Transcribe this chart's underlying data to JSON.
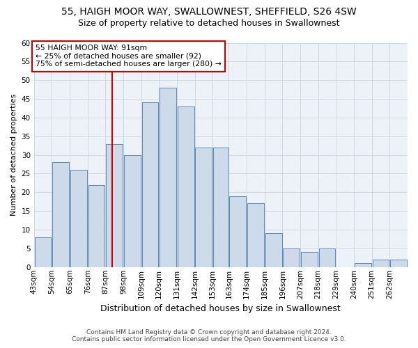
{
  "title_line1": "55, HAIGH MOOR WAY, SWALLOWNEST, SHEFFIELD, S26 4SW",
  "title_line2": "Size of property relative to detached houses in Swallownest",
  "xlabel": "Distribution of detached houses by size in Swallownest",
  "ylabel": "Number of detached properties",
  "footnote1": "Contains HM Land Registry data © Crown copyright and database right 2024.",
  "footnote2": "Contains public sector information licensed under the Open Government Licence v3.0.",
  "bar_labels": [
    "43sqm",
    "54sqm",
    "65sqm",
    "76sqm",
    "87sqm",
    "98sqm",
    "109sqm",
    "120sqm",
    "131sqm",
    "142sqm",
    "153sqm",
    "163sqm",
    "174sqm",
    "185sqm",
    "196sqm",
    "207sqm",
    "218sqm",
    "229sqm",
    "240sqm",
    "251sqm",
    "262sqm"
  ],
  "bins": [
    43,
    54,
    65,
    76,
    87,
    98,
    109,
    120,
    131,
    142,
    153,
    163,
    174,
    185,
    196,
    207,
    218,
    229,
    240,
    251,
    262,
    273
  ],
  "heights": [
    8,
    28,
    26,
    22,
    33,
    30,
    44,
    48,
    43,
    32,
    32,
    19,
    17,
    9,
    5,
    4,
    5,
    0,
    1,
    2,
    2
  ],
  "bar_color": "#ccdaea",
  "bar_edge_color": "#5a8ab5",
  "vline_x": 91,
  "vline_color": "#cc0000",
  "annotation_line1": "55 HAIGH MOOR WAY: 91sqm",
  "annotation_line2": "← 25% of detached houses are smaller (92)",
  "annotation_line3": "75% of semi-detached houses are larger (280) →",
  "ylim": [
    0,
    60
  ],
  "yticks": [
    0,
    5,
    10,
    15,
    20,
    25,
    30,
    35,
    40,
    45,
    50,
    55,
    60
  ],
  "grid_color": "#c8d4e4",
  "bg_color": "#edf2f8",
  "title_fontsize": 10,
  "subtitle_fontsize": 9,
  "xlabel_fontsize": 9,
  "ylabel_fontsize": 8,
  "tick_fontsize": 7.5,
  "footnote_fontsize": 6.5
}
